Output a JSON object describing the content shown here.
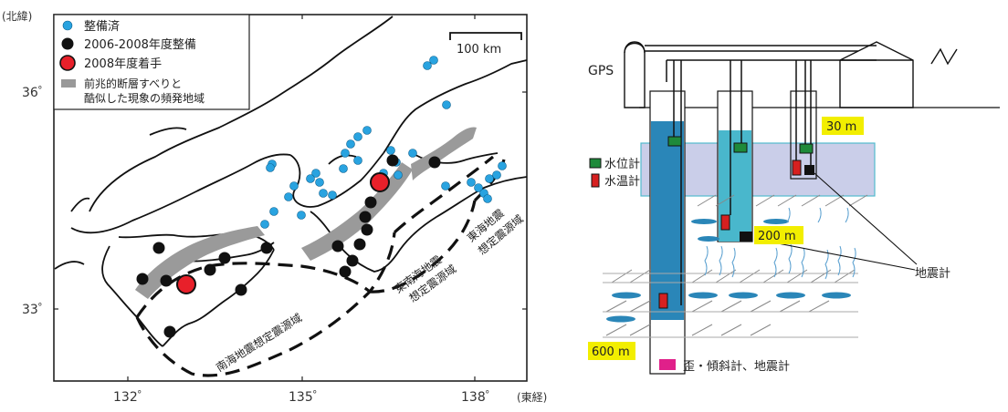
{
  "map": {
    "corner_label": "(北緯)",
    "lon_unit_label": "(東経)",
    "lat_ticks": [
      "36゜",
      "33゜"
    ],
    "lon_ticks": [
      "132゜",
      "135゜",
      "138゜"
    ],
    "scale_label": "100 km",
    "legend": [
      {
        "label": "整備済",
        "color": "#29a3e0",
        "marker": "circle-small"
      },
      {
        "label": "2006-2008年度整備",
        "color": "#111111",
        "marker": "circle-medium"
      },
      {
        "label": "2008年度着手",
        "color": "#e8202a",
        "marker": "circle-large"
      },
      {
        "label": "前兆的断層すべりと",
        "color": "#999999",
        "marker": "rect"
      },
      {
        "label": "酷似した現象の頻発地域",
        "color": "#999999",
        "marker": "none"
      }
    ],
    "zone_labels": {
      "nankai": "南海地震想定震源域",
      "tonankai_line1": "東南海地震",
      "tonankai_line2": "想定震源域",
      "tokai_line1": "東海地震",
      "tokai_line2": "想定震源域"
    }
  },
  "well": {
    "gps_label": "GPS",
    "depth_labels": [
      "30 m",
      "200 m",
      "600 m"
    ],
    "legend": [
      {
        "label": "水位計",
        "color": "#1e8a3a"
      },
      {
        "label": "水温計",
        "color": "#d62020"
      }
    ],
    "seismometer_label": "地震計",
    "strain_label": "歪・傾斜計、地震計",
    "colors": {
      "deep": "#2a86b8",
      "mid": "#49b7cc",
      "layer": "#c8cce8",
      "highlight": "#f2ee00",
      "strain": "#e0208a"
    }
  }
}
